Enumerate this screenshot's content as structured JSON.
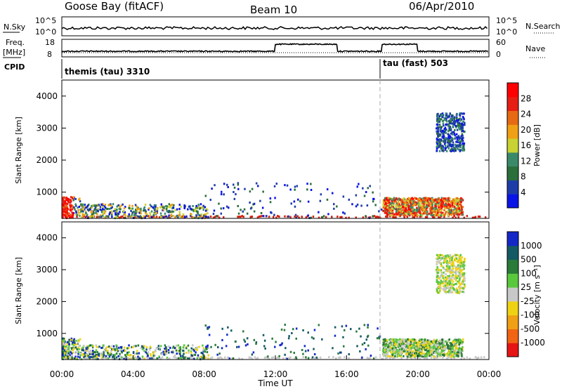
{
  "header": {
    "station": "Goose Bay (fitACF)",
    "beam": "Beam 10",
    "date": "06/Apr/2010"
  },
  "panels": {
    "nsky_label": "N.Sky",
    "nsky_ticks": [
      "10^5",
      "10^0"
    ],
    "nsearch_label": "N.Search",
    "nsearch_ticks": [
      "10^5",
      "10^0"
    ],
    "freq_label_line1": "Freq.",
    "freq_label_line2": "[MHz]",
    "freq_ticks": [
      "18",
      "8"
    ],
    "nave_label": "Nave",
    "nave_ticks": [
      "60",
      "0"
    ],
    "cpid_label": "CPID",
    "cpid_modes": [
      "themis (tau) 3310",
      "tau (fast) 503"
    ]
  },
  "colors": {
    "power": [
      "#0a14e6",
      "#1e3ca8",
      "#2a6e3a",
      "#3a8a6a",
      "#c8d232",
      "#f0a014",
      "#e66a14",
      "#e61e14",
      "#ff0000"
    ],
    "velocity": [
      "#1428c8",
      "#145a64",
      "#2a7a3a",
      "#5ac83c",
      "#c8c8c8",
      "#f0d214",
      "#f0a014",
      "#f06414",
      "#e61414"
    ],
    "ground": "#c8c8c8"
  },
  "chart_data": [
    {
      "type": "heatmap",
      "title": "Power",
      "xlabel": "",
      "ylabel": "Slant Range [km]",
      "ylim": [
        180,
        4500
      ],
      "yticks": [
        "1000",
        "2000",
        "3000",
        "4000"
      ],
      "xlim": [
        "00:00",
        "24:00"
      ],
      "colorbar_label": "Power [dB]",
      "colorbar_ticks": [
        "4",
        "8",
        "12",
        "16",
        "20",
        "24",
        "28"
      ],
      "colorbar_range": [
        0,
        30
      ],
      "regions": [
        {
          "t": [
            0.0,
            8.0
          ],
          "range": [
            200,
            700
          ],
          "value": "4-28 dB, strongest near 0-0.5 h"
        },
        {
          "t": [
            18.0,
            22.5
          ],
          "range": [
            200,
            900
          ],
          "value": "16-30 dB, peak near 19-21 h"
        },
        {
          "t": [
            21.0,
            22.6
          ],
          "range": [
            2300,
            3500
          ],
          "value": "4-12 dB"
        }
      ]
    },
    {
      "type": "heatmap",
      "title": "Velocity",
      "xlabel": "Time UT",
      "ylabel": "Slant Range [km]",
      "ylim": [
        180,
        4500
      ],
      "yticks": [
        "1000",
        "2000",
        "3000",
        "4000"
      ],
      "xlim": [
        "00:00",
        "24:00"
      ],
      "xticks": [
        "00:00",
        "04:00",
        "08:00",
        "12:00",
        "16:00",
        "20:00",
        "00:00"
      ],
      "colorbar_label": "Velocity [m s⁻¹]",
      "colorbar_ticks": [
        "1000",
        "500",
        "100",
        "25",
        "-25",
        "-100",
        "-500",
        "-1000"
      ],
      "regions": [
        {
          "t": [
            0.0,
            8.0
          ],
          "range": [
            200,
            700
          ],
          "value": "-100 to 500 m/s"
        },
        {
          "t": [
            18.0,
            22.5
          ],
          "range": [
            200,
            900
          ],
          "value": "25 to 100 m/s"
        },
        {
          "t": [
            21.0,
            22.6
          ],
          "range": [
            2300,
            3500
          ],
          "value": "-25 to 25 m/s"
        }
      ]
    }
  ],
  "axis_label": "Time UT"
}
